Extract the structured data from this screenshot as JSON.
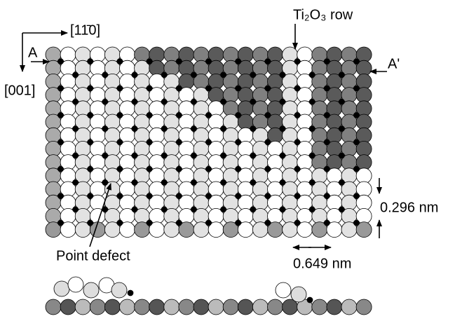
{
  "labels": {
    "direction_x": "[11̄0]",
    "direction_y": "[001]",
    "section_start": "A",
    "section_end": "A'",
    "row": "Ti₂O₃ row",
    "spacing_vertical": "0.296 nm",
    "spacing_horizontal": "0.649 nm",
    "defect": "Point defect"
  }
}
